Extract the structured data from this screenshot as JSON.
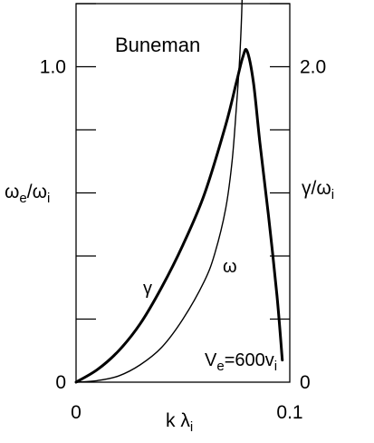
{
  "chart_data": {
    "type": "line",
    "title": "Buneman",
    "annotation": {
      "main": "V",
      "sub": "e",
      "eq": "=600v",
      "sub2": "i"
    },
    "xlabel": {
      "main": "k λ",
      "sub": "i"
    },
    "ylabel_left": {
      "main": "ω",
      "sub": "e",
      "mid": "/ω",
      "sub2": "i"
    },
    "ylabel_right": {
      "main": "γ/ω",
      "sub": "i"
    },
    "xlim": [
      0,
      0.1
    ],
    "ylim_left": [
      0,
      1.2
    ],
    "ylim_right": [
      0,
      2.4
    ],
    "x_ticks": [
      {
        "value": 0,
        "label": "0"
      },
      {
        "value": 0.1,
        "label": "0.1"
      }
    ],
    "y_ticks_left": [
      {
        "value": 0,
        "label": "0"
      },
      {
        "value": 1.0,
        "label": "1.0"
      }
    ],
    "y_ticks_right": [
      {
        "value": 0,
        "label": "0"
      },
      {
        "value": 2.0,
        "label": "2.0"
      }
    ],
    "series": [
      {
        "name": "γ",
        "axis": "right",
        "stroke": "thick",
        "x": [
          0,
          0.01,
          0.02,
          0.03,
          0.04,
          0.05,
          0.06,
          0.07,
          0.075,
          0.078,
          0.08,
          0.083,
          0.086,
          0.09,
          0.094,
          0.0965
        ],
        "y": [
          0,
          0.08,
          0.2,
          0.37,
          0.6,
          0.87,
          1.19,
          1.63,
          1.9,
          2.06,
          2.1,
          1.9,
          1.52,
          1.06,
          0.55,
          0.14
        ]
      },
      {
        "name": "ω",
        "axis": "left",
        "stroke": "thin",
        "x": [
          0,
          0.01,
          0.02,
          0.03,
          0.04,
          0.05,
          0.06,
          0.065,
          0.07,
          0.073,
          0.075,
          0.0765,
          0.0775,
          0.0783
        ],
        "y": [
          0,
          0.005,
          0.02,
          0.055,
          0.11,
          0.2,
          0.32,
          0.41,
          0.55,
          0.7,
          0.87,
          1.02,
          1.17,
          1.37
        ]
      }
    ]
  }
}
